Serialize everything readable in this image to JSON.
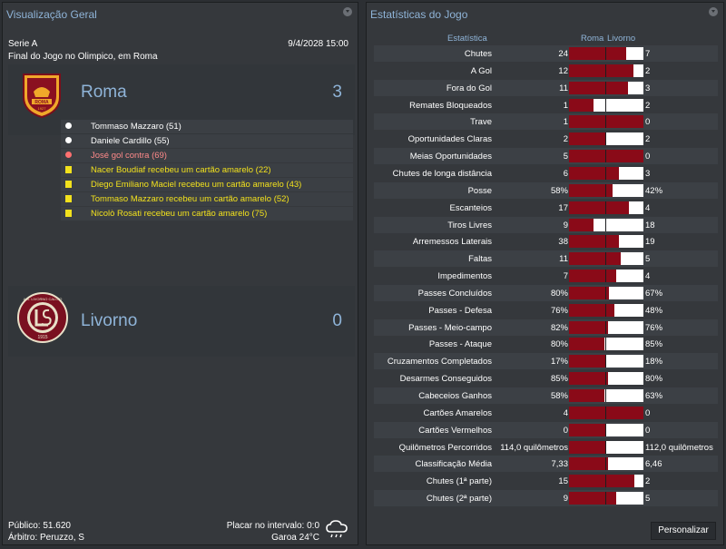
{
  "overview": {
    "title": "Visualização Geral",
    "competition": "Serie A",
    "datetime": "9/4/2028 15:00",
    "venue": "Final do Jogo no Olimpico, em Roma",
    "home": {
      "name": "Roma",
      "score": "3",
      "logo_text": "ROMA",
      "logo_year": "1927"
    },
    "away": {
      "name": "Livorno",
      "score": "0",
      "logo_text": "A.S. LIVORNO CALCIO",
      "logo_year": "1915"
    },
    "events": [
      {
        "type": "goal",
        "text": "Tommaso Mazzaro (51)"
      },
      {
        "type": "goal",
        "text": "Daniele Cardillo (55)"
      },
      {
        "type": "own",
        "text": "José gol contra (69)"
      },
      {
        "type": "yc",
        "text": "Nacer Boudiaf recebeu um cartão amarelo (22)"
      },
      {
        "type": "yc",
        "text": "Diego Emiliano Maciel recebeu um cartão amarelo (43)"
      },
      {
        "type": "yc",
        "text": "Tommaso Mazzaro recebeu um cartão amarelo (52)"
      },
      {
        "type": "yc",
        "text": "Nicolò Rosati recebeu um cartão amarelo (75)"
      }
    ],
    "attendance": "Público: 51.620",
    "referee": "Árbitro: Peruzzo, S",
    "halftime": "Placar no intervalo: 0:0",
    "weather": "Garoa 24°C",
    "weather_icon": "rain-cloud-icon"
  },
  "stats": {
    "title": "Estatísticas do Jogo",
    "col_stat": "Estatística",
    "col_home": "Roma",
    "col_away": "Livorno",
    "button": "Personalizar",
    "colors": {
      "home": "#8a0a18",
      "away": "#ffffff"
    },
    "rows": [
      {
        "label": "Chutes",
        "home": "24",
        "away": "7",
        "share": 0.77
      },
      {
        "label": "A Gol",
        "home": "12",
        "away": "2",
        "share": 0.86
      },
      {
        "label": "Fora do Gol",
        "home": "11",
        "away": "3",
        "share": 0.79
      },
      {
        "label": "Remates Bloqueados",
        "home": "1",
        "away": "2",
        "share": 0.33
      },
      {
        "label": "Trave",
        "home": "1",
        "away": "0",
        "share": 1.0
      },
      {
        "label": "Oportunidades Claras",
        "home": "2",
        "away": "2",
        "share": 0.5
      },
      {
        "label": "Meias Oportunidades",
        "home": "5",
        "away": "0",
        "share": 1.0
      },
      {
        "label": "Chutes de longa distância",
        "home": "6",
        "away": "3",
        "share": 0.67
      },
      {
        "label": "Posse",
        "home": "58%",
        "away": "42%",
        "share": 0.58
      },
      {
        "label": "Escanteios",
        "home": "17",
        "away": "4",
        "share": 0.81
      },
      {
        "label": "Tiros Livres",
        "home": "9",
        "away": "18",
        "share": 0.33
      },
      {
        "label": "Arremessos Laterais",
        "home": "38",
        "away": "19",
        "share": 0.67
      },
      {
        "label": "Faltas",
        "home": "11",
        "away": "5",
        "share": 0.69
      },
      {
        "label": "Impedimentos",
        "home": "7",
        "away": "4",
        "share": 0.64
      },
      {
        "label": "Passes Concluídos",
        "home": "80%",
        "away": "67%",
        "share": 0.54
      },
      {
        "label": "Passes - Defesa",
        "home": "76%",
        "away": "48%",
        "share": 0.61
      },
      {
        "label": "Passes - Meio-campo",
        "home": "82%",
        "away": "76%",
        "share": 0.52
      },
      {
        "label": "Passes - Ataque",
        "home": "80%",
        "away": "85%",
        "share": 0.48
      },
      {
        "label": "Cruzamentos Completados",
        "home": "17%",
        "away": "18%",
        "share": 0.49
      },
      {
        "label": "Desarmes Conseguidos",
        "home": "85%",
        "away": "80%",
        "share": 0.52
      },
      {
        "label": "Cabeceios Ganhos",
        "home": "58%",
        "away": "63%",
        "share": 0.48
      },
      {
        "label": "Cartões Amarelos",
        "home": "4",
        "away": "0",
        "share": 1.0
      },
      {
        "label": "Cartões Vermelhos",
        "home": "0",
        "away": "0",
        "share": 0.5
      },
      {
        "label": "Quilômetros Percorridos",
        "home": "114,0 quilômetros",
        "away": "112,0 quilômetros",
        "share": 0.5
      },
      {
        "label": "Classificação Média",
        "home": "7,33",
        "away": "6,46",
        "share": 0.53
      },
      {
        "label": "Chutes (1ª parte)",
        "home": "15",
        "away": "2",
        "share": 0.88
      },
      {
        "label": "Chutes (2ª parte)",
        "home": "9",
        "away": "5",
        "share": 0.64
      }
    ]
  }
}
